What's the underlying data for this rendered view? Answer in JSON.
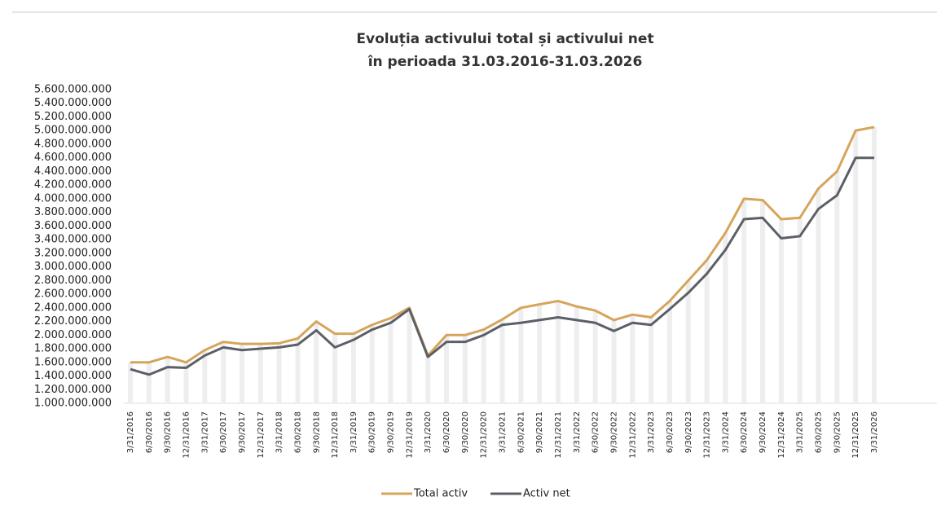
{
  "chart_data": {
    "type": "line",
    "title": "Evoluția activului total și activului net",
    "subtitle": "în perioada 31.03.2016-31.03.2026",
    "categories": [
      "3/31/2016",
      "6/30/2016",
      "9/30/2016",
      "12/31/2016",
      "3/31/2017",
      "6/30/2017",
      "9/30/2017",
      "12/31/2017",
      "3/31/2018",
      "6/30/2018",
      "9/30/2018",
      "12/31/2018",
      "3/31/2019",
      "6/30/2019",
      "9/30/2019",
      "12/31/2019",
      "3/31/2020",
      "6/30/2020",
      "9/30/2020",
      "12/31/2020",
      "3/31/2021",
      "6/30/2021",
      "9/30/2021",
      "12/31/2021",
      "3/31/2022",
      "6/30/2022",
      "9/30/2022",
      "12/31/2022",
      "3/31/2023",
      "6/30/2023",
      "9/30/2023",
      "12/31/2023",
      "3/31/2024",
      "6/30/2024",
      "9/30/2024",
      "12/31/2024",
      "3/31/2025",
      "6/30/2025",
      "9/30/2025",
      "12/31/2025",
      "3/31/2026"
    ],
    "series": [
      {
        "name": "Total activ",
        "color": "#d6a55c",
        "values": [
          1600000000,
          1600000000,
          1680000000,
          1600000000,
          1780000000,
          1900000000,
          1870000000,
          1870000000,
          1880000000,
          1950000000,
          2200000000,
          2020000000,
          2020000000,
          2150000000,
          2250000000,
          2400000000,
          1700000000,
          2000000000,
          2000000000,
          2080000000,
          2230000000,
          2400000000,
          2450000000,
          2500000000,
          2420000000,
          2360000000,
          2220000000,
          2300000000,
          2260000000,
          2500000000,
          2800000000,
          3100000000,
          3500000000,
          4000000000,
          3980000000,
          3700000000,
          3720000000,
          4150000000,
          4400000000,
          5000000000,
          5050000000
        ]
      },
      {
        "name": "Activ net",
        "color": "#5b5f67",
        "values": [
          1500000000,
          1420000000,
          1530000000,
          1520000000,
          1700000000,
          1820000000,
          1780000000,
          1800000000,
          1820000000,
          1860000000,
          2070000000,
          1820000000,
          1930000000,
          2080000000,
          2180000000,
          2380000000,
          1680000000,
          1900000000,
          1900000000,
          2000000000,
          2150000000,
          2180000000,
          2220000000,
          2260000000,
          2220000000,
          2180000000,
          2060000000,
          2180000000,
          2150000000,
          2380000000,
          2620000000,
          2900000000,
          3250000000,
          3700000000,
          3720000000,
          3420000000,
          3450000000,
          3850000000,
          4050000000,
          4600000000,
          4600000000
        ]
      }
    ],
    "ylim": [
      1000000000,
      5600000000
    ],
    "yticks": [
      {
        "value": 1000000000,
        "label": "1.000.000.000"
      },
      {
        "value": 1200000000,
        "label": "1.200.000.000"
      },
      {
        "value": 1400000000,
        "label": "1.400.000.000"
      },
      {
        "value": 1600000000,
        "label": "1.600.000.000"
      },
      {
        "value": 1800000000,
        "label": "1.800.000.000"
      },
      {
        "value": 2000000000,
        "label": "2.000.000.000"
      },
      {
        "value": 2200000000,
        "label": "2.200.000.000"
      },
      {
        "value": 2400000000,
        "label": "2.400.000.000"
      },
      {
        "value": 2600000000,
        "label": "2.600.000.000"
      },
      {
        "value": 2800000000,
        "label": "2.800.000.000"
      },
      {
        "value": 3000000000,
        "label": "3.000.000.000"
      },
      {
        "value": 3200000000,
        "label": "3.200.000.000"
      },
      {
        "value": 3400000000,
        "label": "3.400.000.000"
      },
      {
        "value": 3600000000,
        "label": "3.600.000.000"
      },
      {
        "value": 3800000000,
        "label": "3.800.000.000"
      },
      {
        "value": 4000000000,
        "label": "4.000.000.000"
      },
      {
        "value": 4200000000,
        "label": "4.200.000.000"
      },
      {
        "value": 4400000000,
        "label": "4.400.000.000"
      },
      {
        "value": 4600000000,
        "label": "4.600.000.000"
      },
      {
        "value": 4800000000,
        "label": "4.800.000.000"
      },
      {
        "value": 5000000000,
        "label": "5.000.000.000"
      },
      {
        "value": 5200000000,
        "label": "5.200.000.000"
      },
      {
        "value": 5400000000,
        "label": "5.400.000.000"
      },
      {
        "value": 5600000000,
        "label": "5.600.000.000"
      }
    ],
    "legend": "bottom"
  }
}
